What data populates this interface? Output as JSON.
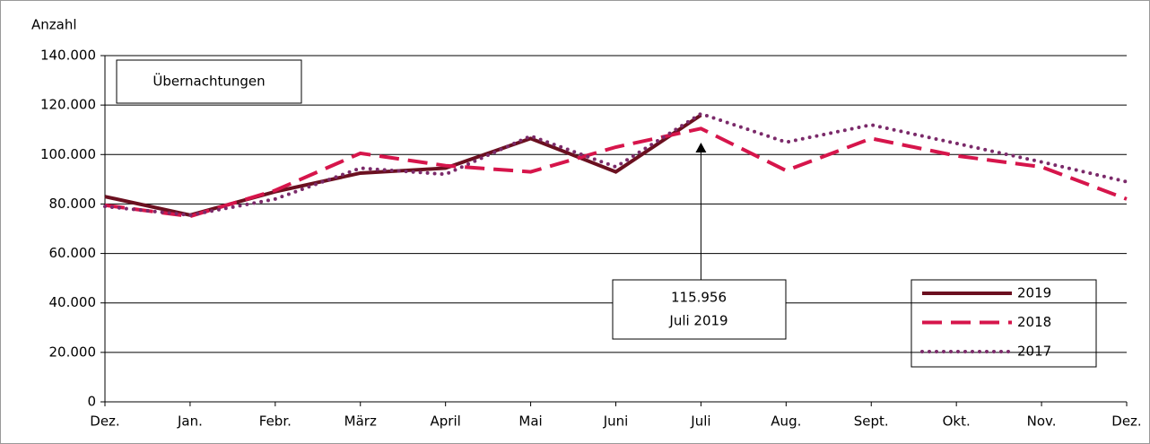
{
  "chart_data": {
    "type": "line",
    "title": "Übernachtungen",
    "y_label": "Anzahl",
    "annotation": "Juli 2019",
    "categories": [
      "Dez.",
      "Jan.",
      "Febr.",
      "März",
      "April",
      "Mai",
      "Juni",
      "Juli",
      "Aug.",
      "Sept.",
      "Okt.",
      "Nov.",
      "Dez."
    ],
    "series": [
      {
        "name": "2019",
        "color": "#6b1020",
        "style": "solid",
        "values": [
          83000,
          75500,
          85000,
          92500,
          94500,
          106500,
          93000,
          115956,
          null,
          null,
          null,
          null,
          null
        ],
        "value_labels": [
          null,
          null,
          null,
          null,
          null,
          null,
          null,
          "115.956",
          null,
          null,
          null,
          null,
          null
        ]
      },
      {
        "name": "2018",
        "color": "#d6154b",
        "style": "dashed",
        "values": [
          79500,
          75000,
          85500,
          100500,
          95500,
          93000,
          103000,
          110500,
          93500,
          106500,
          99500,
          95000,
          82000
        ]
      },
      {
        "name": "2017",
        "color": "#7b2a6a",
        "style": "dotted",
        "values": [
          79000,
          75500,
          82000,
          94500,
          92000,
          107500,
          95000,
          116500,
          105000,
          112000,
          104500,
          97000,
          89000
        ]
      }
    ],
    "ylim": [
      0,
      140000
    ],
    "yticks": [
      0,
      {
        "value": 20000,
        "label": "20.000"
      },
      {
        "value": 40000,
        "label": "40.000"
      },
      {
        "value": 60000,
        "label": "60.000"
      },
      {
        "value": 80000,
        "label": "80.000"
      },
      {
        "value": 100000,
        "label": "100.000"
      },
      {
        "value": 120000,
        "label": "120.000"
      },
      {
        "value": 140000,
        "label": "140.000"
      }
    ],
    "grid": true,
    "legend": "lower right"
  }
}
